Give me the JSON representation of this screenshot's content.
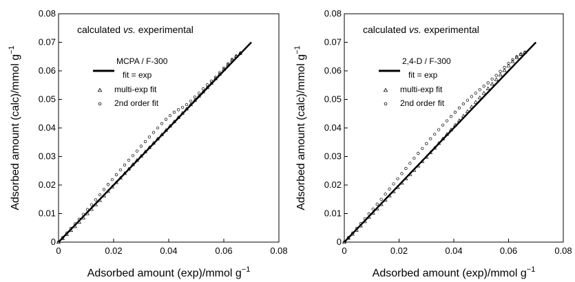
{
  "chart_data": [
    {
      "type": "scatter",
      "annotation": {
        "prefix": "calculated",
        "vs": "vs.",
        "suffix": "experimental"
      },
      "legend_title": "MCPA / F-300",
      "series": [
        {
          "name": "fit = exp",
          "style": "line",
          "x": [
            0,
            0.07
          ],
          "y": [
            0,
            0.07
          ]
        },
        {
          "name": "multi-exp fit",
          "style": "triangle",
          "x": [
            0.0,
            0.0015,
            0.003,
            0.0045,
            0.006,
            0.0075,
            0.009,
            0.0105,
            0.012,
            0.0135,
            0.015,
            0.0165,
            0.018,
            0.0195,
            0.021,
            0.0225,
            0.024,
            0.0255,
            0.027,
            0.0285,
            0.03,
            0.0315,
            0.033,
            0.0345,
            0.036,
            0.0375,
            0.039,
            0.0405,
            0.042,
            0.0435,
            0.045,
            0.0465,
            0.048,
            0.0495,
            0.051,
            0.0525,
            0.054,
            0.0555,
            0.057,
            0.0585,
            0.06,
            0.0615,
            0.063,
            0.0645,
            0.066
          ],
          "y": [
            0.0,
            0.0013,
            0.0027,
            0.0041,
            0.0055,
            0.007,
            0.0085,
            0.01,
            0.0115,
            0.0131,
            0.0146,
            0.0162,
            0.0178,
            0.0194,
            0.0209,
            0.0225,
            0.0241,
            0.0256,
            0.0272,
            0.0287,
            0.0302,
            0.0317,
            0.0332,
            0.0347,
            0.0362,
            0.0377,
            0.0392,
            0.0407,
            0.0422,
            0.0437,
            0.0452,
            0.0467,
            0.0482,
            0.0497,
            0.0512,
            0.0527,
            0.0542,
            0.0557,
            0.0573,
            0.0589,
            0.0605,
            0.0621,
            0.0637,
            0.0651,
            0.0662
          ]
        },
        {
          "name": "2nd order fit",
          "style": "circle",
          "x": [
            0.0,
            0.0015,
            0.003,
            0.0045,
            0.006,
            0.0075,
            0.009,
            0.0105,
            0.012,
            0.0135,
            0.015,
            0.0165,
            0.018,
            0.0195,
            0.021,
            0.0225,
            0.024,
            0.0255,
            0.027,
            0.0285,
            0.03,
            0.0315,
            0.033,
            0.0345,
            0.036,
            0.0375,
            0.039,
            0.0405,
            0.042,
            0.0435,
            0.045,
            0.0465,
            0.048,
            0.0495,
            0.051,
            0.0525,
            0.054,
            0.0555,
            0.057,
            0.0585,
            0.06,
            0.0615,
            0.063,
            0.0645,
            0.066
          ],
          "y": [
            0.0,
            0.0016,
            0.0032,
            0.0048,
            0.0064,
            0.008,
            0.0097,
            0.0114,
            0.0131,
            0.0148,
            0.0166,
            0.0184,
            0.0202,
            0.0219,
            0.0236,
            0.0253,
            0.027,
            0.0287,
            0.0303,
            0.0319,
            0.0336,
            0.0352,
            0.0368,
            0.0384,
            0.04,
            0.0415,
            0.043,
            0.0443,
            0.0455,
            0.0464,
            0.0472,
            0.0482,
            0.0494,
            0.0508,
            0.0522,
            0.0537,
            0.0551,
            0.0564,
            0.0578,
            0.0594,
            0.061,
            0.0625,
            0.064,
            0.0652,
            0.0661
          ]
        }
      ],
      "xlabel_main": "Adsorbed amount (exp)/mmol g",
      "ylabel_main": "Adsorbed amount (calc)/mmol g",
      "unit_exponent": "−1",
      "xlim": [
        0,
        0.08
      ],
      "ylim": [
        0,
        0.08
      ],
      "xticks": [
        "0",
        "0.02",
        "0.04",
        "0.06",
        "0.08"
      ],
      "yticks": [
        "0",
        "0.01",
        "0.02",
        "0.03",
        "0.04",
        "0.05",
        "0.06",
        "0.07",
        "0.08"
      ],
      "grid": false
    },
    {
      "type": "scatter",
      "annotation": {
        "prefix": "calculated",
        "vs": "vs.",
        "suffix": "experimental"
      },
      "legend_title": "2,4-D / F-300",
      "series": [
        {
          "name": "fit = exp",
          "style": "line",
          "x": [
            0,
            0.07
          ],
          "y": [
            0,
            0.07
          ]
        },
        {
          "name": "multi-exp fit",
          "style": "triangle",
          "x": [
            0.0,
            0.0015,
            0.003,
            0.0045,
            0.006,
            0.0075,
            0.009,
            0.0105,
            0.012,
            0.0135,
            0.015,
            0.0165,
            0.018,
            0.0195,
            0.021,
            0.0225,
            0.024,
            0.0255,
            0.027,
            0.0285,
            0.03,
            0.0315,
            0.033,
            0.0345,
            0.036,
            0.0375,
            0.039,
            0.0405,
            0.042,
            0.0435,
            0.045,
            0.0465,
            0.048,
            0.0495,
            0.051,
            0.0525,
            0.054,
            0.0555,
            0.057,
            0.0585,
            0.06,
            0.0615,
            0.063,
            0.0645,
            0.066
          ],
          "y": [
            0.0,
            0.0014,
            0.0028,
            0.0042,
            0.0057,
            0.0072,
            0.0087,
            0.0102,
            0.0117,
            0.0132,
            0.0147,
            0.0162,
            0.0177,
            0.0192,
            0.0207,
            0.0222,
            0.0237,
            0.0252,
            0.0267,
            0.0283,
            0.0298,
            0.0314,
            0.033,
            0.0346,
            0.0362,
            0.0378,
            0.0394,
            0.041,
            0.0426,
            0.0442,
            0.0458,
            0.0474,
            0.049,
            0.0506,
            0.0522,
            0.0538,
            0.0554,
            0.057,
            0.0586,
            0.0602,
            0.0618,
            0.0633,
            0.0647,
            0.0658,
            0.0665
          ]
        },
        {
          "name": "2nd order fit",
          "style": "circle",
          "x": [
            0.0,
            0.0015,
            0.003,
            0.0045,
            0.006,
            0.0075,
            0.009,
            0.0105,
            0.012,
            0.0135,
            0.015,
            0.0165,
            0.018,
            0.0195,
            0.021,
            0.0225,
            0.024,
            0.0255,
            0.027,
            0.0285,
            0.03,
            0.0315,
            0.033,
            0.0345,
            0.036,
            0.0375,
            0.039,
            0.0405,
            0.042,
            0.0435,
            0.045,
            0.0465,
            0.048,
            0.0495,
            0.051,
            0.0525,
            0.054,
            0.0555,
            0.057,
            0.0585,
            0.06,
            0.0615,
            0.063,
            0.0645,
            0.066
          ],
          "y": [
            0.0,
            0.0016,
            0.0032,
            0.0048,
            0.0065,
            0.0082,
            0.0099,
            0.0116,
            0.0133,
            0.015,
            0.0168,
            0.0186,
            0.0204,
            0.0222,
            0.024,
            0.0258,
            0.0276,
            0.0294,
            0.0311,
            0.0328,
            0.0345,
            0.0362,
            0.0378,
            0.0394,
            0.041,
            0.0425,
            0.044,
            0.0455,
            0.047,
            0.0484,
            0.0497,
            0.051,
            0.0522,
            0.0534,
            0.0546,
            0.0558,
            0.0571,
            0.0584,
            0.0598,
            0.0612,
            0.0626,
            0.0639,
            0.065,
            0.0659,
            0.0665
          ]
        }
      ],
      "xlabel_main": "Adsorbed amount (exp)/mmol g",
      "ylabel_main": "Adsorbed amount (calc)/mmol g",
      "unit_exponent": "−1",
      "xlim": [
        0,
        0.08
      ],
      "ylim": [
        0,
        0.08
      ],
      "xticks": [
        "0",
        "0.02",
        "0.04",
        "0.06",
        "0.08"
      ],
      "yticks": [
        "0",
        "0.01",
        "0.02",
        "0.03",
        "0.04",
        "0.05",
        "0.06",
        "0.07",
        "0.08"
      ],
      "grid": false
    }
  ]
}
